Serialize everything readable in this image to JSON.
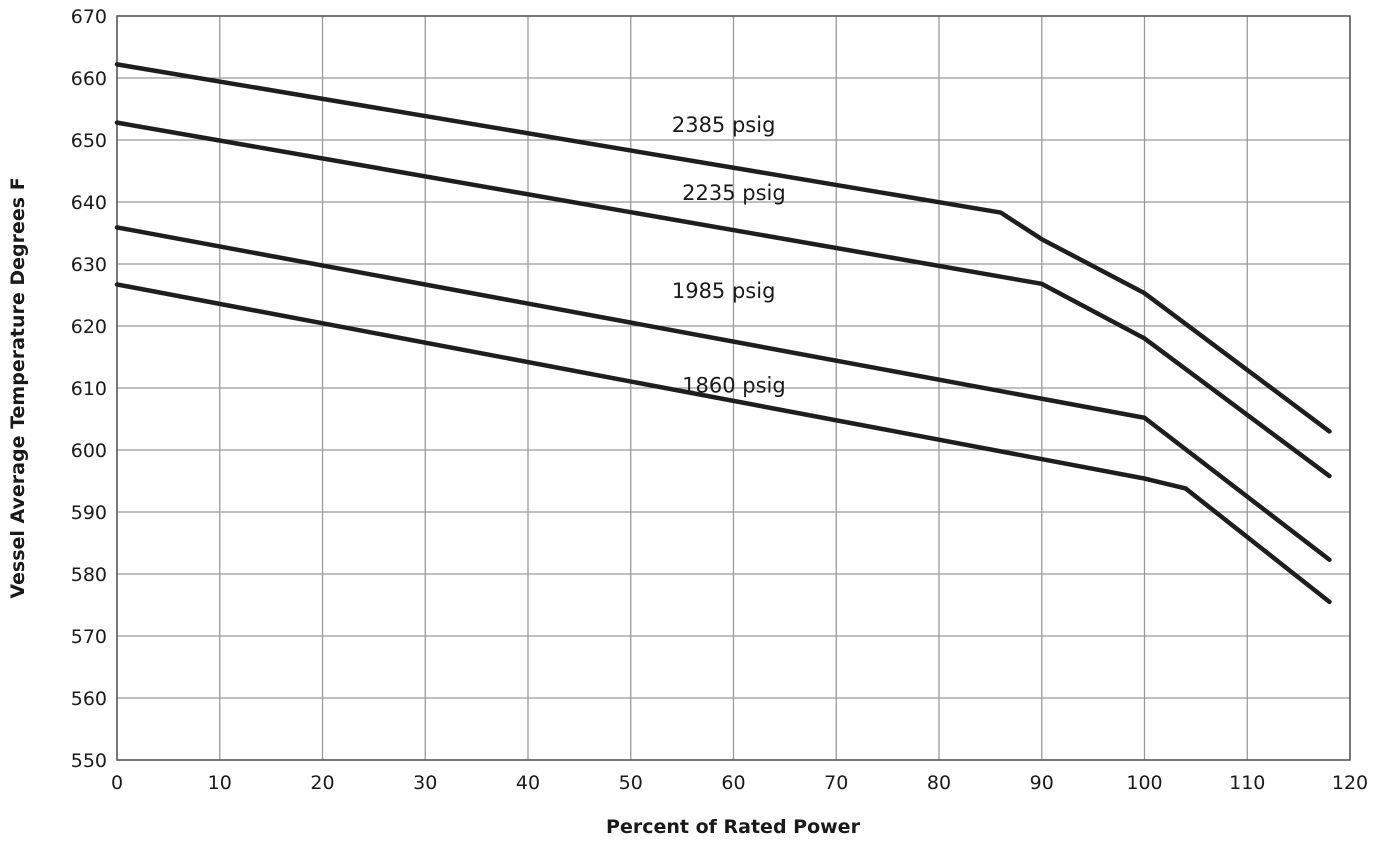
{
  "chart_data": {
    "type": "line",
    "title": "",
    "xlabel": "Percent of Rated Power",
    "ylabel": "Vessel Average Temperature Degrees F",
    "xlim": [
      0,
      120
    ],
    "ylim": [
      550,
      670
    ],
    "x_ticks": [
      0,
      10,
      20,
      30,
      40,
      50,
      60,
      70,
      80,
      90,
      100,
      110,
      120
    ],
    "y_ticks": [
      550,
      560,
      570,
      580,
      590,
      600,
      610,
      620,
      630,
      640,
      650,
      660,
      670
    ],
    "grid": true,
    "legend": "none",
    "line_color": "#1e1e1e",
    "series": [
      {
        "name": "2385 psig",
        "x": [
          0,
          86,
          90,
          100,
          118
        ],
        "y": [
          662.2,
          638.3,
          634.0,
          625.3,
          603.0
        ]
      },
      {
        "name": "2235 psig",
        "x": [
          0,
          90,
          100,
          118
        ],
        "y": [
          652.8,
          626.8,
          618.0,
          595.8
        ]
      },
      {
        "name": "1985 psig",
        "x": [
          0,
          100,
          118
        ],
        "y": [
          635.9,
          605.2,
          582.3
        ]
      },
      {
        "name": "1860 psig",
        "x": [
          0,
          100,
          104,
          118
        ],
        "y": [
          626.7,
          595.4,
          593.8,
          575.5
        ]
      }
    ],
    "annotations": [
      {
        "text": "2385 psig",
        "x": 54,
        "y": 651.3
      },
      {
        "text": "2235 psig",
        "x": 55,
        "y": 640.3
      },
      {
        "text": "1985 psig",
        "x": 54,
        "y": 624.5
      },
      {
        "text": "1860 psig",
        "x": 55,
        "y": 609.3
      }
    ]
  }
}
